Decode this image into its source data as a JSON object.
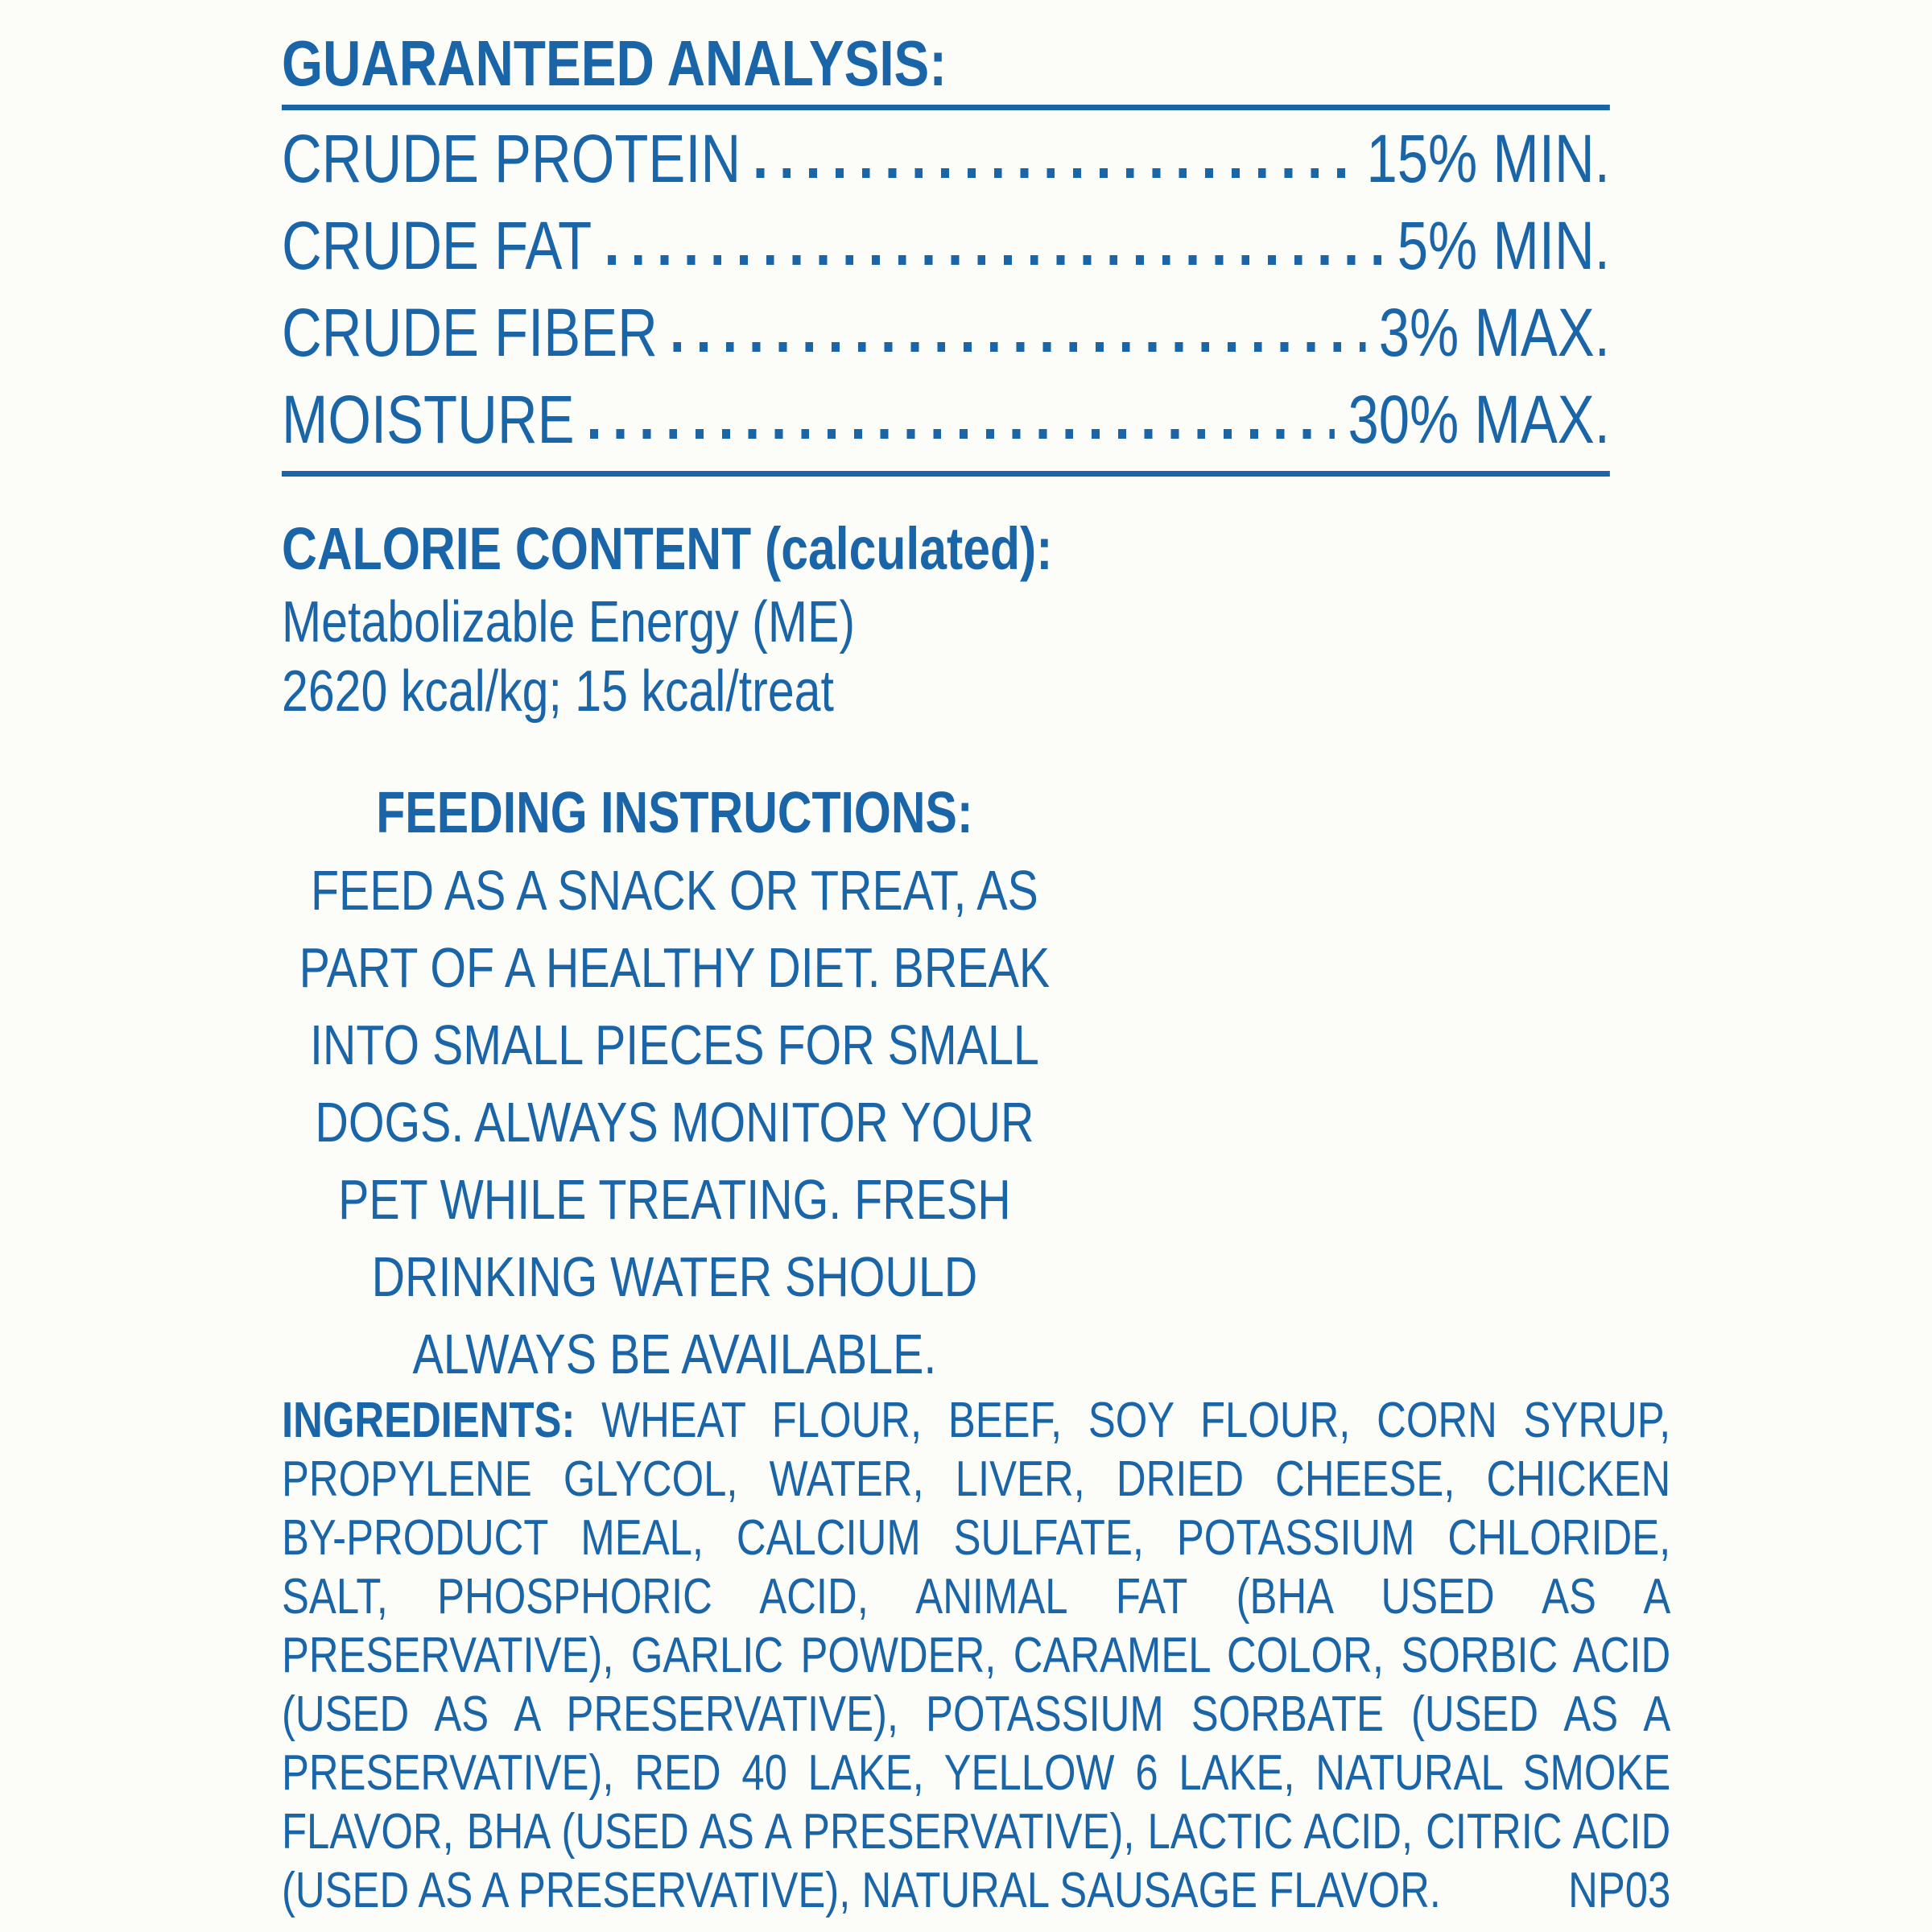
{
  "label": {
    "accent_color": "#1a64a8",
    "background_color": "#fcfcf9"
  },
  "guaranteed_analysis": {
    "title": "GUARANTEED ANALYSIS:",
    "rows": [
      {
        "nutrient": "CRUDE PROTEIN",
        "value": "15% MIN."
      },
      {
        "nutrient": "CRUDE FAT",
        "value": "5% MIN."
      },
      {
        "nutrient": "CRUDE FIBER",
        "value": "3% MAX."
      },
      {
        "nutrient": "MOISTURE",
        "value": "30% MAX."
      }
    ]
  },
  "calorie_content": {
    "title": "CALORIE CONTENT (calculated):",
    "lines": [
      "Metabolizable Energy (ME)",
      "2620 kcal/kg; 15 kcal/treat"
    ]
  },
  "feeding_instructions": {
    "title": "FEEDING INSTRUCTIONS:",
    "lines": [
      "FEED AS A SNACK OR TREAT, AS",
      "PART OF A HEALTHY DIET. BREAK",
      "INTO SMALL PIECES FOR SMALL",
      "DOGS. ALWAYS MONITOR YOUR",
      "PET WHILE TREATING. FRESH",
      "DRINKING WATER SHOULD",
      "ALWAYS BE AVAILABLE."
    ]
  },
  "ingredients": {
    "heading": "INGREDIENTS:",
    "line_1": "WHEAT FLOUR, BEEF, SOY FLOUR, CORN SYRUP,",
    "lines": [
      "PROPYLENE GLYCOL, WATER, LIVER, DRIED CHEESE, CHICKEN",
      "BY-PRODUCT MEAL, CALCIUM SULFATE, POTASSIUM CHLORIDE,",
      "SALT, PHOSPHORIC ACID, ANIMAL FAT (BHA USED AS A",
      "PRESERVATIVE), GARLIC POWDER, CARAMEL COLOR, SORBIC ACID",
      "(USED AS A PRESERVATIVE), POTASSIUM SORBATE (USED AS A",
      "PRESERVATIVE), RED 40 LAKE, YELLOW 6 LAKE, NATURAL SMOKE",
      "FLAVOR, BHA (USED AS A PRESERVATIVE), LACTIC ACID, CITRIC ACID"
    ],
    "last_line": "(USED AS A PRESERVATIVE), NATURAL SAUSAGE FLAVOR.",
    "product_code": "NP03"
  }
}
